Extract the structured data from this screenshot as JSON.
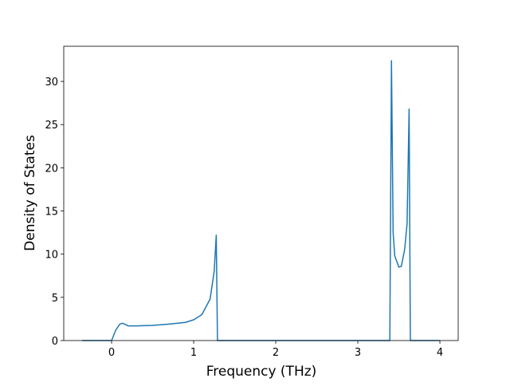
{
  "chart_data": {
    "type": "line",
    "x_label": "Frequency (THz)",
    "y_label": "Density of States",
    "x": [
      -0.36,
      0,
      0.05,
      0.1,
      0.13,
      0.17,
      0.2,
      0.3,
      0.5,
      0.7,
      0.9,
      1.0,
      1.1,
      1.2,
      1.25,
      1.275,
      1.29,
      3.39,
      3.41,
      3.43,
      3.45,
      3.5,
      3.53,
      3.57,
      3.6,
      3.625,
      3.64,
      4.0
    ],
    "values": [
      0,
      0,
      1.2,
      1.9,
      2.0,
      1.85,
      1.7,
      1.7,
      1.75,
      1.9,
      2.1,
      2.4,
      3.0,
      4.8,
      8,
      12.2,
      0,
      0,
      32.4,
      12.5,
      9.8,
      8.5,
      8.6,
      10.5,
      13.5,
      26.8,
      0,
      0
    ],
    "color": "#1f77b4",
    "xlim": [
      -0.583,
      4.223
    ],
    "xticks": [
      0,
      1,
      2,
      3,
      4
    ],
    "ylim": [
      0,
      34.07
    ],
    "yticks": [
      0,
      5,
      10,
      15,
      20,
      25,
      30
    ]
  }
}
